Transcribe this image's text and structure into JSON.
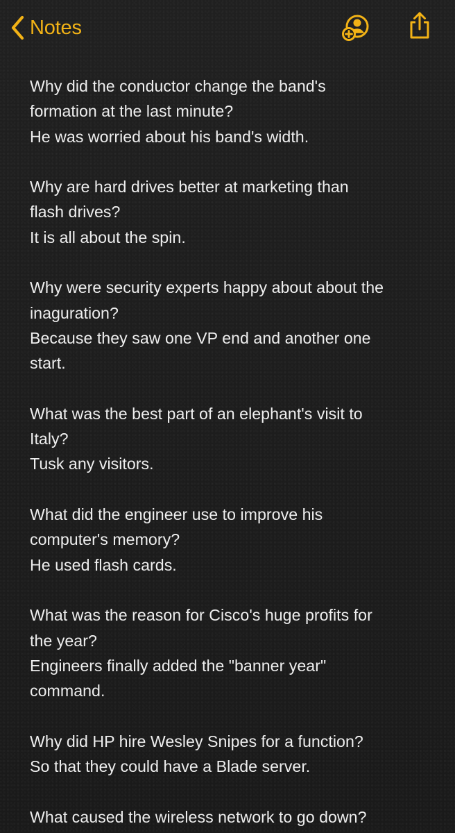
{
  "navigation": {
    "back_label": "Notes"
  },
  "note": {
    "lines": [
      "Why did the conductor change the band's",
      "formation at the last minute?",
      "He was worried about his band's width.",
      "",
      "Why are hard drives better at marketing than",
      "flash drives?",
      "It is all about the spin.",
      "",
      "Why were security experts happy about about the",
      "inaguration?",
      "Because they saw one VP end and another one",
      "start.",
      "",
      "What was the best part of an elephant's visit to",
      "Italy?",
      "Tusk any visitors.",
      "",
      "What did the engineer use to improve his",
      "computer's memory?",
      "He used flash cards.",
      "",
      "What was the reason for Cisco's huge profits for",
      "the year?",
      "Engineers finally added the \"banner year\"",
      "command.",
      "",
      "Why did HP hire Wesley Snipes for a function?",
      "So that they could have a Blade server.",
      "",
      "What caused the wireless network to go down?"
    ]
  },
  "icons": {
    "back": "chevron-left-icon",
    "collaborate": "add-person-icon",
    "share": "share-icon"
  },
  "colors": {
    "accent": "#f3b316",
    "background": "#1c1c1c",
    "text": "#eeeeee"
  }
}
